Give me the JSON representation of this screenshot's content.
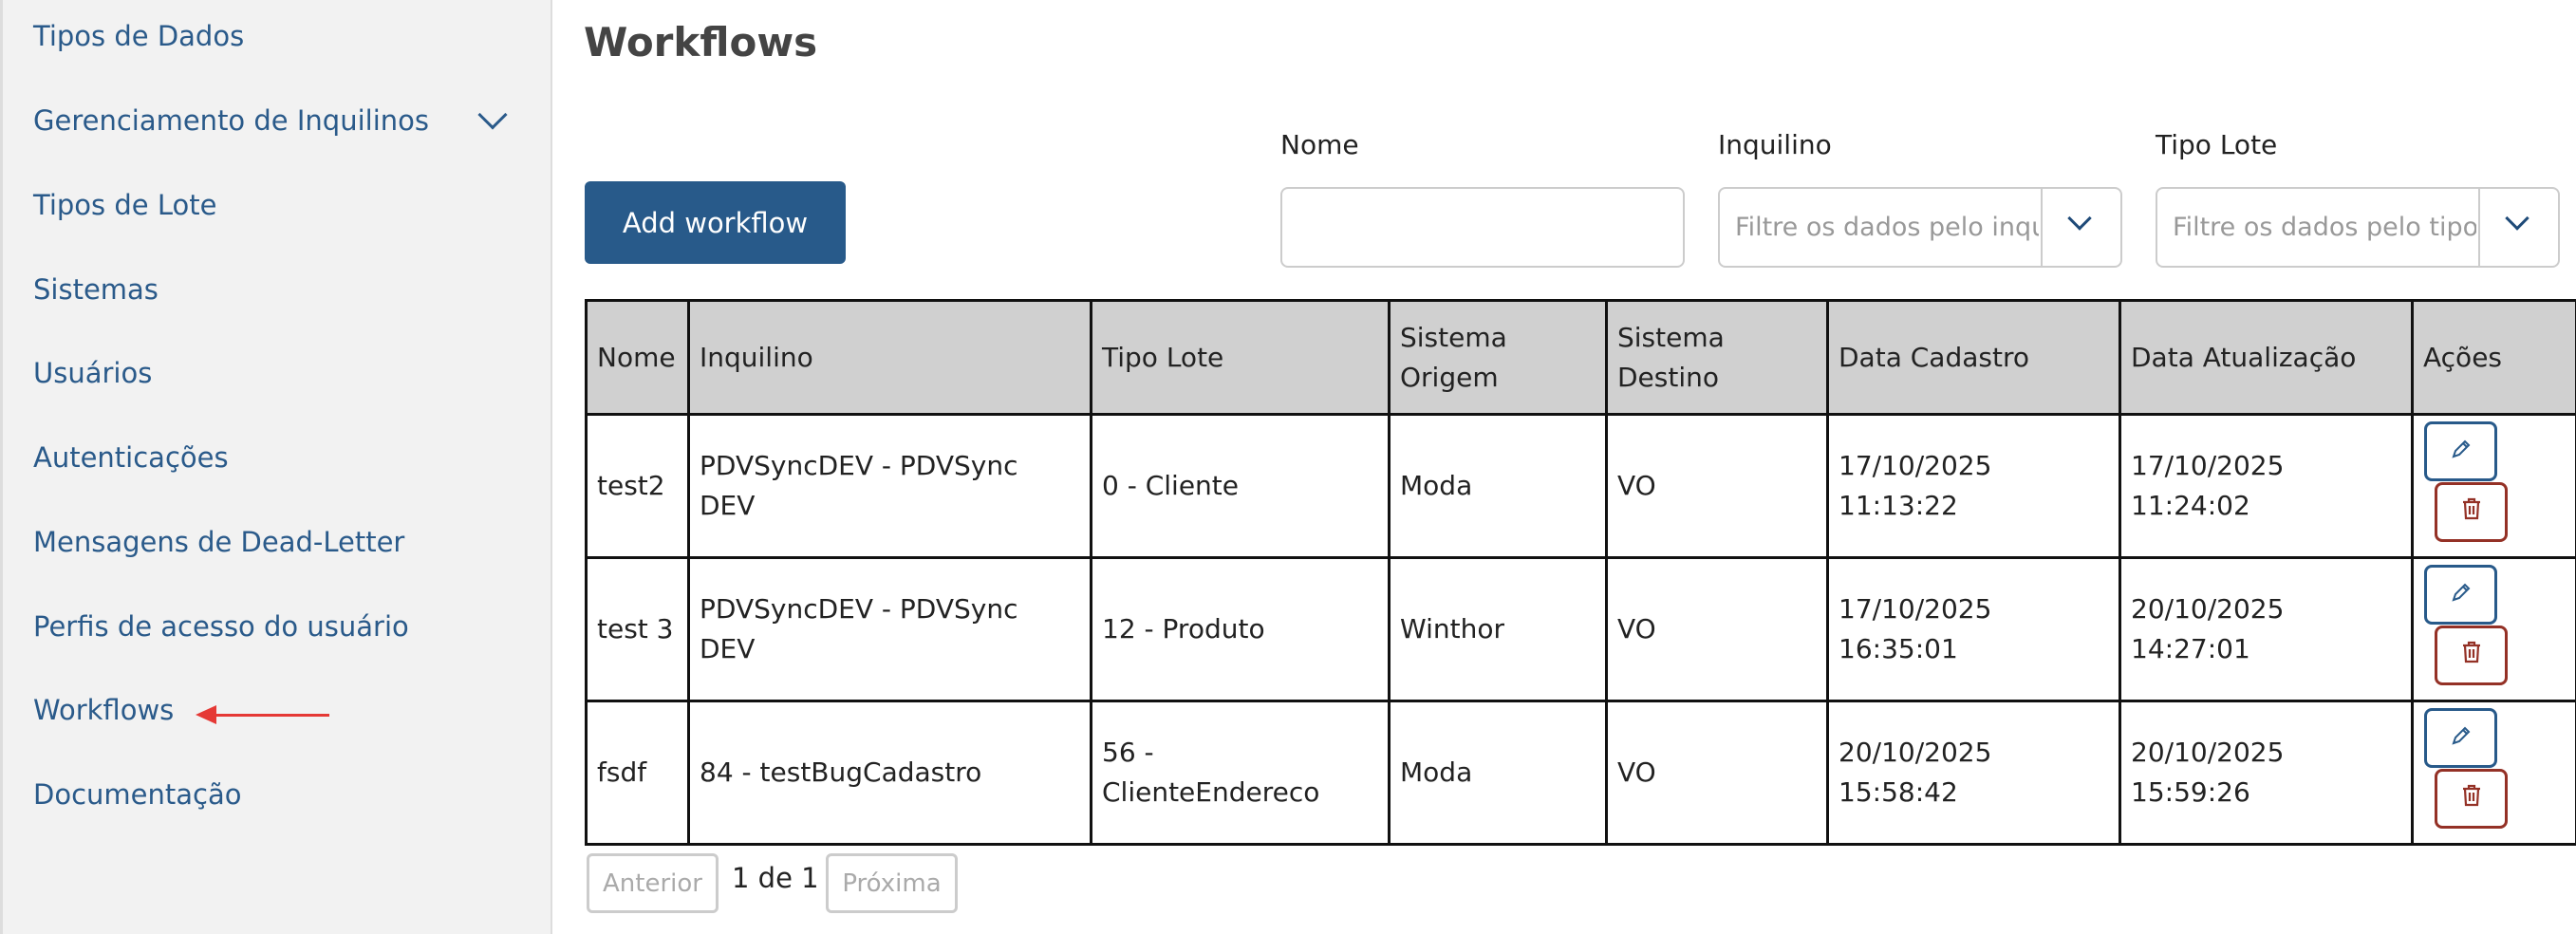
{
  "sidebar": {
    "items": [
      {
        "label": "Tipos de Dados"
      },
      {
        "label": "Gerenciamento de Inquilinos",
        "expandable": true
      },
      {
        "label": "Tipos de Lote"
      },
      {
        "label": "Sistemas"
      },
      {
        "label": "Usuários"
      },
      {
        "label": "Autenticações"
      },
      {
        "label": "Mensagens de Dead-Letter"
      },
      {
        "label": "Perfis de acesso do usuário"
      },
      {
        "label": "Workflows",
        "highlighted_by_arrow": true
      },
      {
        "label": "Documentação"
      }
    ]
  },
  "page": {
    "title": "Workflows",
    "add_button": "Add workflow"
  },
  "filters": {
    "nome": {
      "label": "Nome",
      "value": "",
      "placeholder": ""
    },
    "inquilino": {
      "label": "Inquilino",
      "placeholder": "Filtre os dados pelo inquilino"
    },
    "tipo_lote": {
      "label": "Tipo Lote",
      "placeholder": "Filtre os dados pelo tipo"
    }
  },
  "table": {
    "headers": [
      "Nome",
      "Inquilino",
      "Tipo Lote",
      "Sistema Origem",
      "Sistema Destino",
      "Data Cadastro",
      "Data Atualização",
      "Ações"
    ],
    "rows": [
      [
        "test2",
        "PDVSyncDEV - PDVSync DEV",
        "0 - Cliente",
        "Moda",
        "VO",
        "17/10/2025 11:13:22",
        "17/10/2025 11:24:02"
      ],
      [
        "test 3",
        "PDVSyncDEV - PDVSync DEV",
        "12 - Produto",
        "Winthor",
        "VO",
        "17/10/2025 16:35:01",
        "20/10/2025 14:27:01"
      ],
      [
        "fsdf",
        "84 - testBugCadastro",
        "56 - ClienteEndereco",
        "Moda",
        "VO",
        "20/10/2025 15:58:42",
        "20/10/2025 15:59:26"
      ]
    ]
  },
  "pagination": {
    "prev": "Anterior",
    "info": "1 de 1",
    "next": "Próxima"
  },
  "colors": {
    "primary": "#285a8a",
    "danger": "#943126",
    "sidebar_link": "#2a5a8a",
    "arrow": "#e53935"
  }
}
